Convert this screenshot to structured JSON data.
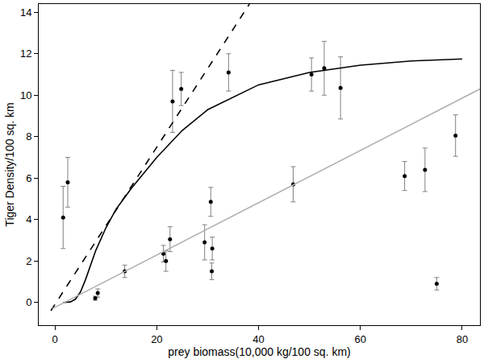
{
  "chart_data": {
    "type": "scatter",
    "x_label": "prey biomass(10,000 kg/100 sq. km)",
    "y_label": "Tiger Density/100 sq. km",
    "xlim": [
      -3.2,
      83.5
    ],
    "ylim": [
      -1.1,
      14.4
    ],
    "xticks": [
      0,
      20,
      40,
      60,
      80
    ],
    "yticks": [
      0,
      2,
      4,
      6,
      8,
      10,
      12,
      14
    ],
    "grid": false,
    "series": [
      {
        "type": "scatter",
        "color": "#000000",
        "marker": "circle",
        "error_color": "#808080",
        "x": [
          1.6,
          2.5,
          7.9,
          8.4,
          13.7,
          21.3,
          21.8,
          22.6,
          23.1,
          24.8,
          30.6,
          29.4,
          30.9,
          30.8,
          34.1,
          46.8,
          50.4,
          52.9,
          56.1,
          68.7,
          72.7,
          75.0,
          78.7
        ],
        "values": [
          4.1,
          5.8,
          0.2,
          0.45,
          1.5,
          2.35,
          2.0,
          3.05,
          9.7,
          10.3,
          4.85,
          2.9,
          2.6,
          1.5,
          11.1,
          5.7,
          11.0,
          11.3,
          10.35,
          6.1,
          6.4,
          0.9,
          8.05
        ],
        "error": [
          1.5,
          1.2,
          0.1,
          0.2,
          0.3,
          0.4,
          0.5,
          0.6,
          1.5,
          0.8,
          0.7,
          0.85,
          0.55,
          0.4,
          0.9,
          0.85,
          0.8,
          1.3,
          1.5,
          0.7,
          1.05,
          0.3,
          1.0
        ]
      },
      {
        "type": "line",
        "color": "#000000",
        "line_style": "solid",
        "x": [
          1.6,
          3,
          4,
          5,
          6,
          7,
          8,
          10,
          12,
          15,
          20,
          25,
          30,
          40,
          50,
          60,
          70,
          80
        ],
        "values": [
          0,
          0.02,
          0.15,
          0.5,
          1.1,
          1.8,
          2.5,
          3.6,
          4.5,
          5.5,
          7.0,
          8.3,
          9.3,
          10.5,
          11.1,
          11.45,
          11.65,
          11.75
        ]
      },
      {
        "type": "line",
        "color": "#000000",
        "line_style": "dash",
        "x": [
          -0.8,
          38.2
        ],
        "values": [
          -0.4,
          14.4
        ]
      },
      {
        "type": "line",
        "color": "#b0b0b0",
        "line_style": "solid",
        "x": [
          -0.5,
          83.5
        ],
        "values": [
          -0.3,
          10.3
        ]
      }
    ]
  }
}
